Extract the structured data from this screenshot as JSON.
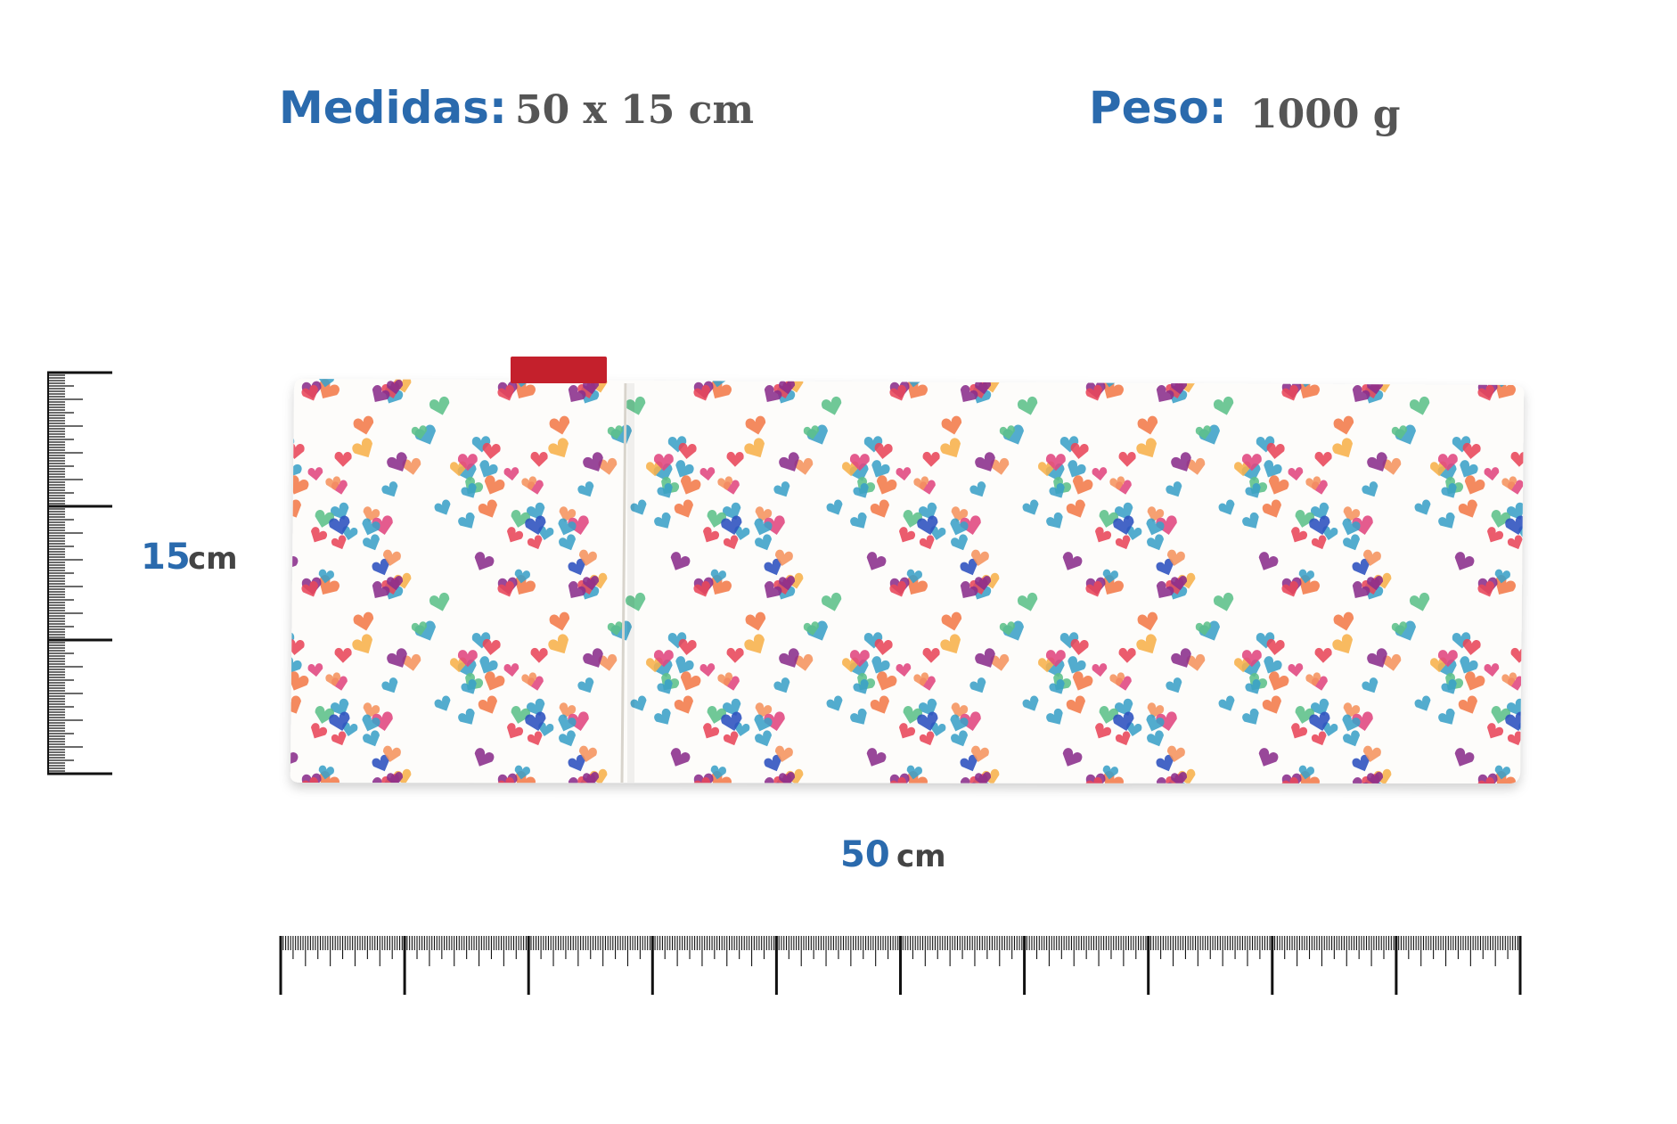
{
  "header": {
    "items": [
      {
        "label": "Medidas:",
        "value": "50 x 15 cm"
      },
      {
        "label": "Peso:",
        "value": "1000 g"
      }
    ]
  },
  "dimensions": {
    "height": {
      "value": "15",
      "unit": "cm"
    },
    "width": {
      "value": "50",
      "unit": "cm"
    }
  }
}
